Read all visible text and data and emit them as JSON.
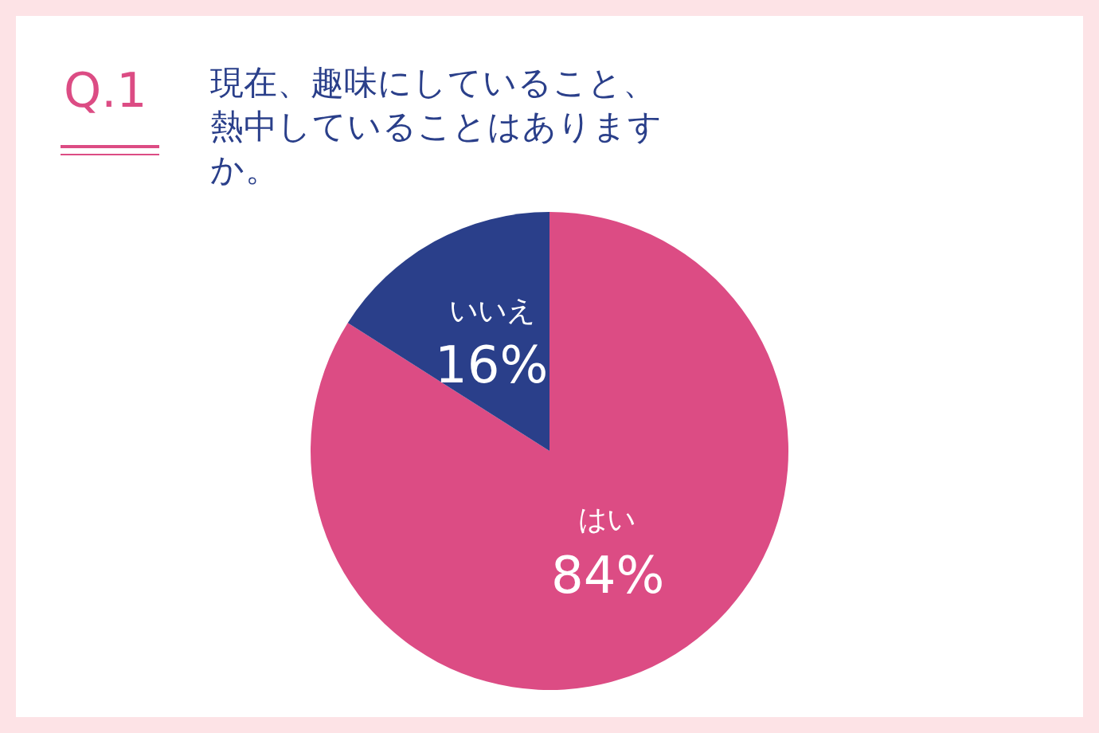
{
  "chart_data": {
    "type": "pie",
    "title": "現在、趣味にしていること、熱中していることはありますか。",
    "annotations": [
      "Q.1"
    ],
    "categories": [
      "はい",
      "いいえ"
    ],
    "values": [
      84,
      16
    ],
    "value_labels": [
      "84%",
      "16%"
    ],
    "colors": [
      "#dc4c84",
      "#2a3f8a"
    ]
  }
}
